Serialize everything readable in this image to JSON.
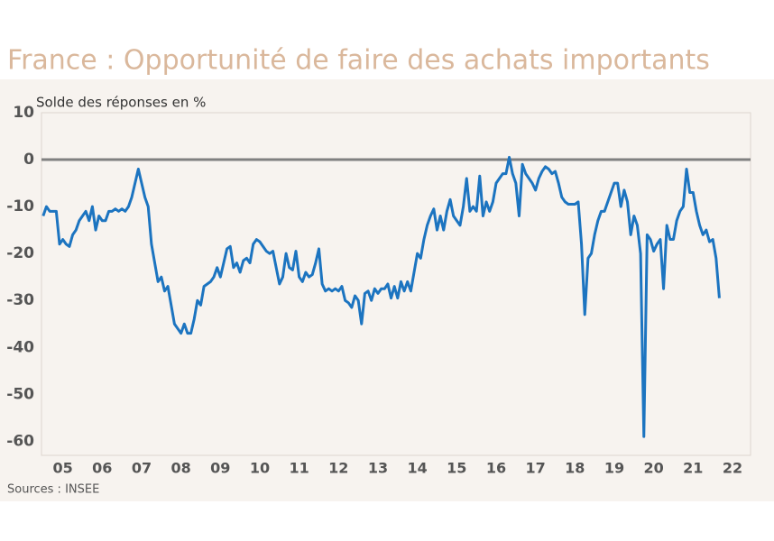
{
  "chart_data": {
    "type": "line",
    "title": "France : Opportunité de faire des achats importants",
    "y_label": "Solde des réponses en %",
    "source": "Sources : INSEE",
    "categories": [
      null,
      null,
      null,
      null,
      null,
      null,
      "05",
      null,
      null,
      null,
      null,
      null,
      null,
      null,
      null,
      null,
      null,
      null,
      "06",
      null,
      null,
      null,
      null,
      null,
      null,
      null,
      null,
      null,
      null,
      null,
      "07",
      null,
      null,
      null,
      null,
      null,
      null,
      null,
      null,
      null,
      null,
      null,
      "08",
      null,
      null,
      null,
      null,
      null,
      null,
      null,
      null,
      null,
      null,
      null,
      "09",
      null,
      null,
      null,
      null,
      null,
      null,
      null,
      null,
      null,
      null,
      null,
      "10",
      null,
      null,
      null,
      null,
      null,
      null,
      null,
      null,
      null,
      null,
      null,
      "11",
      null,
      null,
      null,
      null,
      null,
      null,
      null,
      null,
      null,
      null,
      null,
      "12",
      null,
      null,
      null,
      null,
      null,
      null,
      null,
      null,
      null,
      null,
      null,
      "13",
      null,
      null,
      null,
      null,
      null,
      null,
      null,
      null,
      null,
      null,
      null,
      "14",
      null,
      null,
      null,
      null,
      null,
      null,
      null,
      null,
      null,
      null,
      null,
      "15",
      null,
      null,
      null,
      null,
      null,
      null,
      null,
      null,
      null,
      null,
      null,
      "16",
      null,
      null,
      null,
      null,
      null,
      null,
      null,
      null,
      null,
      null,
      null,
      "17",
      null,
      null,
      null,
      null,
      null,
      null,
      null,
      null,
      null,
      null,
      null,
      "18",
      null,
      null,
      null,
      null,
      null,
      null,
      null,
      null,
      null,
      null,
      null,
      "19",
      null,
      null,
      null,
      null,
      null,
      null,
      null,
      null,
      null,
      null,
      null,
      "20",
      null,
      null,
      null,
      null,
      null,
      null,
      null,
      null,
      null,
      null,
      null,
      "21",
      null,
      null,
      null,
      null,
      null,
      null,
      null,
      null,
      null,
      null,
      null,
      "22",
      null,
      null,
      null,
      null,
      null
    ],
    "series": [
      {
        "name": "Opportunité de faire des achats importants",
        "color": "#1c74c0",
        "values": [
          -12,
          -10,
          -11,
          -11,
          -11,
          -18,
          -17,
          -18,
          -18.5,
          -16,
          -15,
          -13,
          -12,
          -11,
          -13,
          -10,
          -15,
          -12,
          -13,
          -13,
          -11,
          -11,
          -10.5,
          -11,
          -10.5,
          -11,
          -10,
          -8,
          -5,
          -2,
          -5,
          -8,
          -10,
          -18,
          -22,
          -26,
          -25,
          -28,
          -27,
          -31,
          -35,
          -36,
          -37,
          -35,
          -37,
          -37,
          -34,
          -30,
          -31,
          -27,
          -26.5,
          -26,
          -25,
          -23,
          -25,
          -22,
          -19,
          -18.5,
          -23,
          -22,
          -24,
          -21.5,
          -21,
          -22,
          -18,
          -17,
          -17.5,
          -18.5,
          -19.5,
          -20,
          -19.5,
          -23,
          -26.5,
          -25,
          -20,
          -23,
          -23.5,
          -19.5,
          -25,
          -26,
          -24,
          -25,
          -24.5,
          -22,
          -19,
          -26.5,
          -28,
          -27.5,
          -28,
          -27.5,
          -28,
          -27,
          -30,
          -30.5,
          -31.5,
          -29,
          -30,
          -35,
          -28.5,
          -28,
          -30,
          -27.5,
          -28.5,
          -27.5,
          -27.5,
          -26.5,
          -29.5,
          -27,
          -29.5,
          -26,
          -28,
          -26,
          -28,
          -24,
          -20,
          -21,
          -17,
          -14,
          -12,
          -10.5,
          -15,
          -12,
          -15,
          -11,
          -8.5,
          -12,
          -13,
          -14,
          -10,
          -4,
          -11,
          -10,
          -11,
          -3.5,
          -12,
          -9,
          -11,
          -9,
          -5,
          -4,
          -3,
          -3,
          0.5,
          -3,
          -5,
          -12,
          -1,
          -3,
          -4,
          -5,
          -6.5,
          -4,
          -2.5,
          -1.5,
          -2,
          -3,
          -2.5,
          -5,
          -8,
          -9,
          -9.5,
          -9.5,
          -9.5,
          -9,
          -18,
          -33,
          -21,
          -20,
          -16,
          -13,
          -11,
          -11,
          -9,
          -7,
          -5,
          -5,
          -10,
          -6.5,
          -9,
          -16,
          -12,
          -14,
          -20,
          -59,
          -16,
          -17,
          -19.5,
          -18,
          -17,
          -27.5,
          -14,
          -17,
          -17,
          -13,
          -11,
          -10,
          -2,
          -7,
          -7,
          -11,
          -14,
          -16,
          -15,
          -17.5,
          -17,
          -21,
          -29.5,
          null,
          null,
          null,
          null,
          null,
          null,
          null,
          null,
          null
        ]
      }
    ],
    "ylim": [
      -63,
      10
    ],
    "yticks": [
      10,
      0,
      -10,
      -20,
      -30,
      -40,
      -50,
      -60
    ]
  }
}
